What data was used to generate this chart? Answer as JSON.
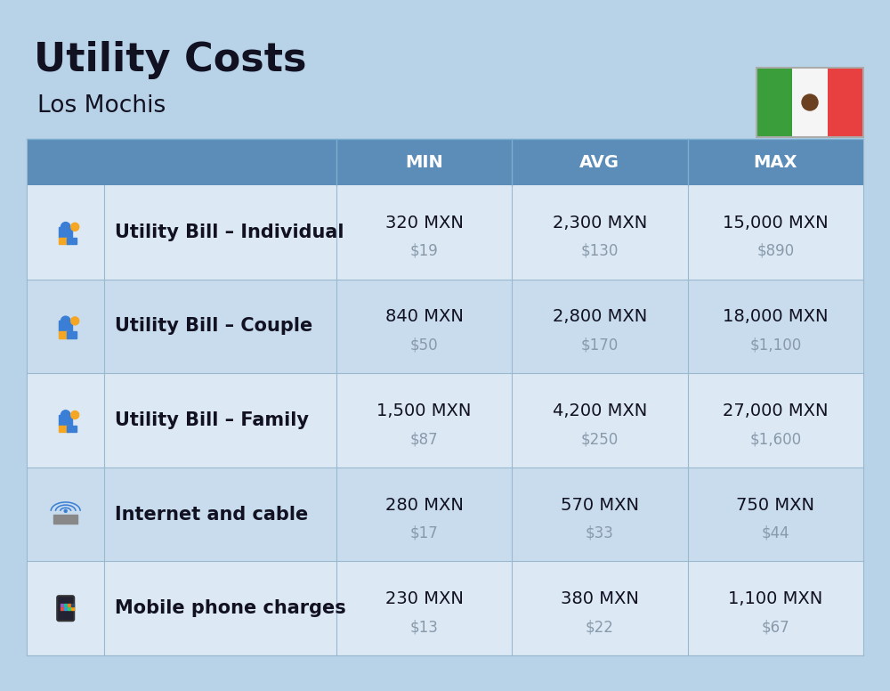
{
  "title": "Utility Costs",
  "subtitle": "Los Mochis",
  "background_color": "#b8d3e8",
  "header_color": "#5b8db8",
  "header_text_color": "#ffffff",
  "row_colors": [
    "#dce9f5",
    "#cddee f"
  ],
  "cell_text_color": "#111122",
  "usd_text_color": "#8899aa",
  "col_headers": [
    "",
    "",
    "MIN",
    "AVG",
    "MAX"
  ],
  "rows": [
    {
      "label": "Utility Bill – Individual",
      "min_mxn": "320 MXN",
      "min_usd": "$19",
      "avg_mxn": "2,300 MXN",
      "avg_usd": "$130",
      "max_mxn": "15,000 MXN",
      "max_usd": "$890"
    },
    {
      "label": "Utility Bill – Couple",
      "min_mxn": "840 MXN",
      "min_usd": "$50",
      "avg_mxn": "2,800 MXN",
      "avg_usd": "$170",
      "max_mxn": "18,000 MXN",
      "max_usd": "$1,100"
    },
    {
      "label": "Utility Bill – Family",
      "min_mxn": "1,500 MXN",
      "min_usd": "$87",
      "avg_mxn": "4,200 MXN",
      "avg_usd": "$250",
      "max_mxn": "27,000 MXN",
      "max_usd": "$1,600"
    },
    {
      "label": "Internet and cable",
      "min_mxn": "280 MXN",
      "min_usd": "$17",
      "avg_mxn": "570 MXN",
      "avg_usd": "$33",
      "max_mxn": "750 MXN",
      "max_usd": "$44"
    },
    {
      "label": "Mobile phone charges",
      "min_mxn": "230 MXN",
      "min_usd": "$13",
      "avg_mxn": "380 MXN",
      "avg_usd": "$22",
      "max_mxn": "1,100 MXN",
      "max_usd": "$67"
    }
  ],
  "flag_green": "#3a9e3a",
  "flag_white": "#f5f5f5",
  "flag_red": "#e84040",
  "title_fontsize": 32,
  "subtitle_fontsize": 19,
  "header_fontsize": 14,
  "cell_fontsize": 14,
  "usd_fontsize": 12,
  "label_fontsize": 15
}
